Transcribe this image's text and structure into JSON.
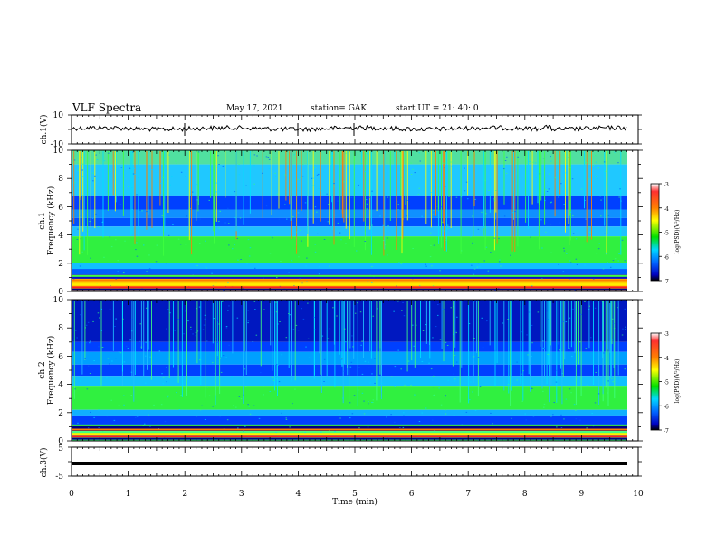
{
  "header": {
    "title": "VLF Spectra",
    "date": "May 17, 2021",
    "station": "station= GAK",
    "start": "start UT = 21: 40: 0"
  },
  "panels": {
    "ch1_wave": {
      "ylabel": "ch.1(V)",
      "yticks": [
        "10",
        "-10"
      ]
    },
    "ch1_spec": {
      "ylabel_top": "ch.1",
      "ylabel": "Frequency (kHz)",
      "yticks": [
        "0",
        "2",
        "4",
        "6",
        "8",
        "10"
      ]
    },
    "ch2_spec": {
      "ylabel_top": "ch.2",
      "ylabel": "Frequency (kHz)",
      "yticks": [
        "0",
        "2",
        "4",
        "6",
        "8",
        "10"
      ]
    },
    "ch3_wave": {
      "ylabel": "ch.3(V)",
      "yticks": [
        "5",
        "-5"
      ]
    }
  },
  "colorbar": {
    "label": "log(PSD)(V²/Hz)",
    "ticks": [
      "-3",
      "-4",
      "-5",
      "-6",
      "-7"
    ],
    "colors": [
      "#ff0000",
      "#ffff00",
      "#00ff00",
      "#00ffff",
      "#0000ff",
      "#000080"
    ]
  },
  "xaxis": {
    "label": "Time (min)",
    "ticks": [
      "0",
      "1",
      "2",
      "3",
      "4",
      "5",
      "6",
      "7",
      "8",
      "9",
      "10"
    ]
  },
  "chart_data": [
    {
      "type": "line",
      "title": "VLF Spectra",
      "ylabel": "ch.1(V)",
      "xlabel": "",
      "xlim": [
        0,
        10
      ],
      "ylim": [
        -10,
        10
      ],
      "series": [
        {
          "values_description_level": 0.5
        }
      ]
    },
    {
      "type": "heatmap",
      "ylabel": "Frequency (kHz)",
      "xlim": [
        0,
        10
      ],
      "ylim": [
        0,
        10
      ],
      "zlim": [
        -7,
        -3
      ]
    },
    {
      "type": "heatmap",
      "ylabel": "Frequency (kHz)",
      "xlim": [
        0,
        10
      ],
      "ylim": [
        0,
        10
      ],
      "zlim": [
        -7,
        -3
      ]
    },
    {
      "type": "line",
      "ylabel": "ch.3(V)",
      "xlabel": "Time (min)",
      "xlim": [
        0,
        10
      ],
      "ylim": [
        -5,
        5
      ],
      "series": [
        {
          "values_description_level": -1.0
        }
      ]
    }
  ]
}
